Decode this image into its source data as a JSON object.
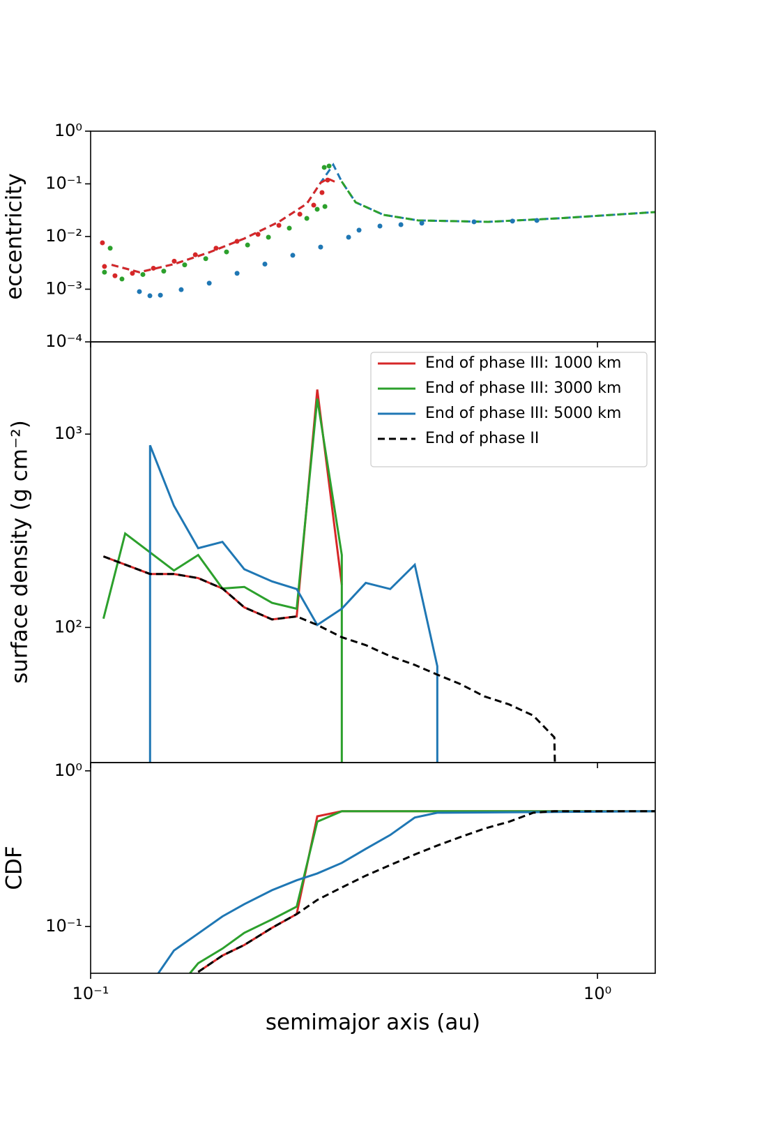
{
  "chart_data": [
    {
      "type": "line",
      "ylabel": "eccentricity",
      "xscale": "log",
      "yscale": "log",
      "xlim": [
        0.1,
        1.3
      ],
      "xticks": [
        0.1,
        1
      ],
      "ylim": [
        0.0001,
        1
      ],
      "yticks": [
        {
          "value": 1,
          "label": "10⁰"
        },
        {
          "value": 0.1,
          "label": "10⁻¹"
        },
        {
          "value": 0.01,
          "label": "10⁻²"
        },
        {
          "value": 0.001,
          "label": "10⁻³"
        },
        {
          "value": 0.0001,
          "label": "10⁻⁴"
        }
      ],
      "series": [
        {
          "color": "#1f77b4",
          "style": "dashed",
          "x": [
            0.11,
            0.1248,
            0.1462,
            0.1714,
            0.2007,
            0.2352,
            0.267,
            0.2843,
            0.3011,
            0.3128,
            0.3333,
            0.3782,
            0.4432,
            0.6083,
            0.8348,
            1.3
          ],
          "values": [
            0.0029,
            0.0021,
            0.003,
            0.005,
            0.0091,
            0.019,
            0.042,
            0.105,
            0.231,
            0.111,
            0.0446,
            0.0258,
            0.0202,
            0.019,
            0.0221,
            0.0291
          ]
        },
        {
          "color": "#2ca02c",
          "style": "dashed",
          "x": [
            0.3128,
            0.3333,
            0.3782,
            0.4432,
            0.6083,
            0.8348,
            1.3
          ],
          "values": [
            0.111,
            0.0446,
            0.0258,
            0.0202,
            0.019,
            0.0221,
            0.0291
          ]
        },
        {
          "color": "#d62728",
          "style": "dashed",
          "x": [
            0.11,
            0.1248,
            0.1462,
            0.1714,
            0.2007,
            0.2352,
            0.267,
            0.2843,
            0.294,
            0.303
          ],
          "values": [
            0.0029,
            0.0021,
            0.003,
            0.005,
            0.0091,
            0.019,
            0.042,
            0.105,
            0.125,
            0.11
          ]
        },
        {
          "color": "#d62728",
          "style": "dots",
          "x": [
            0.1055,
            0.1065,
            0.1117,
            0.1209,
            0.133,
            0.1462,
            0.1609,
            0.1768,
            0.1945,
            0.2139,
            0.2352,
            0.2587,
            0.2755,
            0.2861,
            0.2935
          ],
          "values": [
            0.0076,
            0.0027,
            0.0018,
            0.002,
            0.0025,
            0.0034,
            0.0045,
            0.006,
            0.0081,
            0.011,
            0.0163,
            0.0265,
            0.0394,
            0.0683,
            0.118
          ]
        },
        {
          "color": "#2ca02c",
          "style": "dots",
          "x": [
            0.1093,
            0.1065,
            0.1153,
            0.1268,
            0.1394,
            0.1533,
            0.1687,
            0.1854,
            0.204,
            0.2243,
            0.2466,
            0.267,
            0.2799,
            0.2899,
            0.289,
            0.2954
          ],
          "values": [
            0.006,
            0.0021,
            0.00156,
            0.0019,
            0.0022,
            0.0029,
            0.0038,
            0.0051,
            0.0069,
            0.0097,
            0.0144,
            0.0221,
            0.0329,
            0.0371,
            0.205,
            0.218
          ]
        },
        {
          "color": "#1f77b4",
          "style": "dots",
          "x": [
            0.1248,
            0.1309,
            0.1373,
            0.1509,
            0.1714,
            0.1945,
            0.2207,
            0.2505,
            0.2843,
            0.3228,
            0.3385,
            0.3722,
            0.4094,
            0.4502,
            0.5707,
            0.6795,
            0.7592
          ],
          "values": [
            0.0009,
            0.00075,
            0.00077,
            0.00098,
            0.0013,
            0.002,
            0.003,
            0.0044,
            0.0063,
            0.0097,
            0.0132,
            0.0158,
            0.0168,
            0.0179,
            0.019,
            0.0196,
            0.0202
          ]
        }
      ]
    },
    {
      "type": "line",
      "ylabel": "surface density (g cm⁻²)",
      "xscale": "log",
      "yscale": "log",
      "xlim": [
        0.1,
        1.3
      ],
      "xticks": [
        0.1,
        1
      ],
      "ylim": [
        20,
        3000
      ],
      "yticks": [
        {
          "value": 100,
          "label": "10²"
        },
        {
          "value": 1000,
          "label": "10³"
        }
      ],
      "legend": "upper right",
      "series": [
        {
          "name": "End of phase III: 1000 km",
          "color": "#d62728",
          "style": "solid",
          "x": [
            0.106,
            0.131,
            0.146,
            0.163,
            0.182,
            0.201,
            0.228,
            0.255,
            0.28,
            0.313
          ],
          "values": [
            233,
            189,
            189,
            180,
            159,
            127,
            110,
            114,
            1700,
            166
          ]
        },
        {
          "name": "End of phase III: 3000 km",
          "color": "#2ca02c",
          "style": "solid",
          "x": [
            0.106,
            0.117,
            0.146,
            0.163,
            0.182,
            0.201,
            0.228,
            0.255,
            0.28,
            0.313,
            0.313
          ],
          "values": [
            111,
            306,
            197,
            237,
            159,
            162,
            134,
            125,
            1525,
            237,
            1
          ]
        },
        {
          "name": "End of phase III: 5000 km",
          "color": "#1f77b4",
          "style": "solid",
          "x": [
            0.131,
            0.131,
            0.146,
            0.163,
            0.182,
            0.201,
            0.228,
            0.255,
            0.28,
            0.313,
            0.349,
            0.39,
            0.436,
            0.483,
            0.483
          ],
          "values": [
            1,
            875,
            426,
            257,
            277,
            200,
            173,
            158,
            103,
            125,
            170,
            158,
            211,
            63,
            1
          ]
        },
        {
          "name": "End of phase II",
          "color": "#000000",
          "style": "dashed",
          "x": [
            0.106,
            0.131,
            0.146,
            0.163,
            0.182,
            0.201,
            0.228,
            0.255,
            0.28,
            0.313,
            0.349,
            0.39,
            0.436,
            0.483,
            0.536,
            0.598,
            0.669,
            0.747,
            0.822,
            0.843
          ],
          "values": [
            233,
            189,
            189,
            180,
            159,
            127,
            110,
            114,
            103,
            89,
            81,
            71,
            64,
            57,
            51,
            44,
            40,
            35,
            27,
            1
          ]
        }
      ]
    },
    {
      "type": "line",
      "ylabel": "CDF",
      "xlabel": "semimajor axis (au)",
      "xscale": "log",
      "yscale": "log",
      "xlim": [
        0.1,
        1.3
      ],
      "xticks": [
        {
          "value": 0.1,
          "label": "10⁻¹"
        },
        {
          "value": 1,
          "label": "10⁰"
        }
      ],
      "ylim": [
        0.05,
        1.13
      ],
      "yticks": [
        {
          "value": 0.1,
          "label": "10⁻¹"
        },
        {
          "value": 1,
          "label": "10⁰"
        }
      ],
      "series": [
        {
          "color": "#d62728",
          "style": "solid",
          "x": [
            0.163,
            0.182,
            0.201,
            0.228,
            0.255,
            0.28,
            0.313,
            1.3
          ],
          "values": [
            0.051,
            0.065,
            0.076,
            0.098,
            0.12,
            0.51,
            0.55,
            0.55
          ]
        },
        {
          "color": "#2ca02c",
          "style": "solid",
          "x": [
            0.157,
            0.163,
            0.182,
            0.201,
            0.228,
            0.255,
            0.28,
            0.313,
            1.3
          ],
          "values": [
            0.05,
            0.058,
            0.072,
            0.091,
            0.111,
            0.134,
            0.471,
            0.55,
            0.55
          ]
        },
        {
          "color": "#1f77b4",
          "style": "solid",
          "x": [
            0.136,
            0.146,
            0.163,
            0.182,
            0.201,
            0.228,
            0.255,
            0.28,
            0.313,
            0.349,
            0.39,
            0.436,
            0.483,
            0.598,
            1.3
          ],
          "values": [
            0.05,
            0.07,
            0.09,
            0.116,
            0.139,
            0.171,
            0.198,
            0.219,
            0.256,
            0.315,
            0.387,
            0.501,
            0.538,
            0.54,
            0.55
          ]
        },
        {
          "color": "#000000",
          "style": "dashed",
          "x": [
            0.163,
            0.182,
            0.201,
            0.228,
            0.255,
            0.28,
            0.313,
            0.349,
            0.39,
            0.436,
            0.483,
            0.536,
            0.598,
            0.669,
            0.747,
            0.822,
            1.3
          ],
          "values": [
            0.051,
            0.065,
            0.076,
            0.098,
            0.12,
            0.148,
            0.178,
            0.212,
            0.248,
            0.29,
            0.331,
            0.375,
            0.425,
            0.471,
            0.538,
            0.55,
            0.55
          ]
        }
      ]
    }
  ]
}
